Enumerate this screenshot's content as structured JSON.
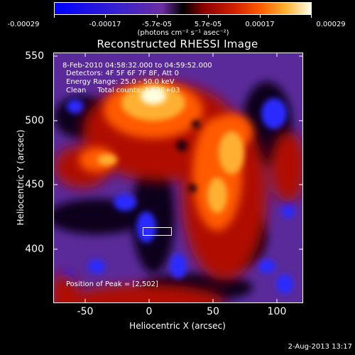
{
  "colorbar": {
    "labels": [
      "-0.00029",
      "-0.00017",
      "-5.7e-05",
      "5.7e-05",
      "0.00017",
      "0.00029"
    ],
    "units": "(photons cm⁻² s⁻¹ asec⁻²)"
  },
  "title": "Reconstructed RHESSI Image",
  "annotations": {
    "time_range": "8-Feb-2010 04:58:32.000 to 04:59:52.000",
    "detectors": "Detectors: 4F 5F 6F 7F 8F, Att 0",
    "energy": "Energy Range: 25.0 - 50.0 keV",
    "clean": "Clean     Total counts: 1.63E+03",
    "peak": "Position of Peak = [2,502]"
  },
  "axes": {
    "xlabel": "Heliocentric X (arcsec)",
    "ylabel": "Heliocentric Y (arcsec)",
    "xticks": [
      "-50",
      "0",
      "50",
      "100"
    ],
    "yticks": [
      "550",
      "500",
      "450",
      "400"
    ],
    "xrange": [
      -75,
      120
    ],
    "yrange": [
      358,
      552
    ]
  },
  "footer": "2-Aug-2013 13:17"
}
